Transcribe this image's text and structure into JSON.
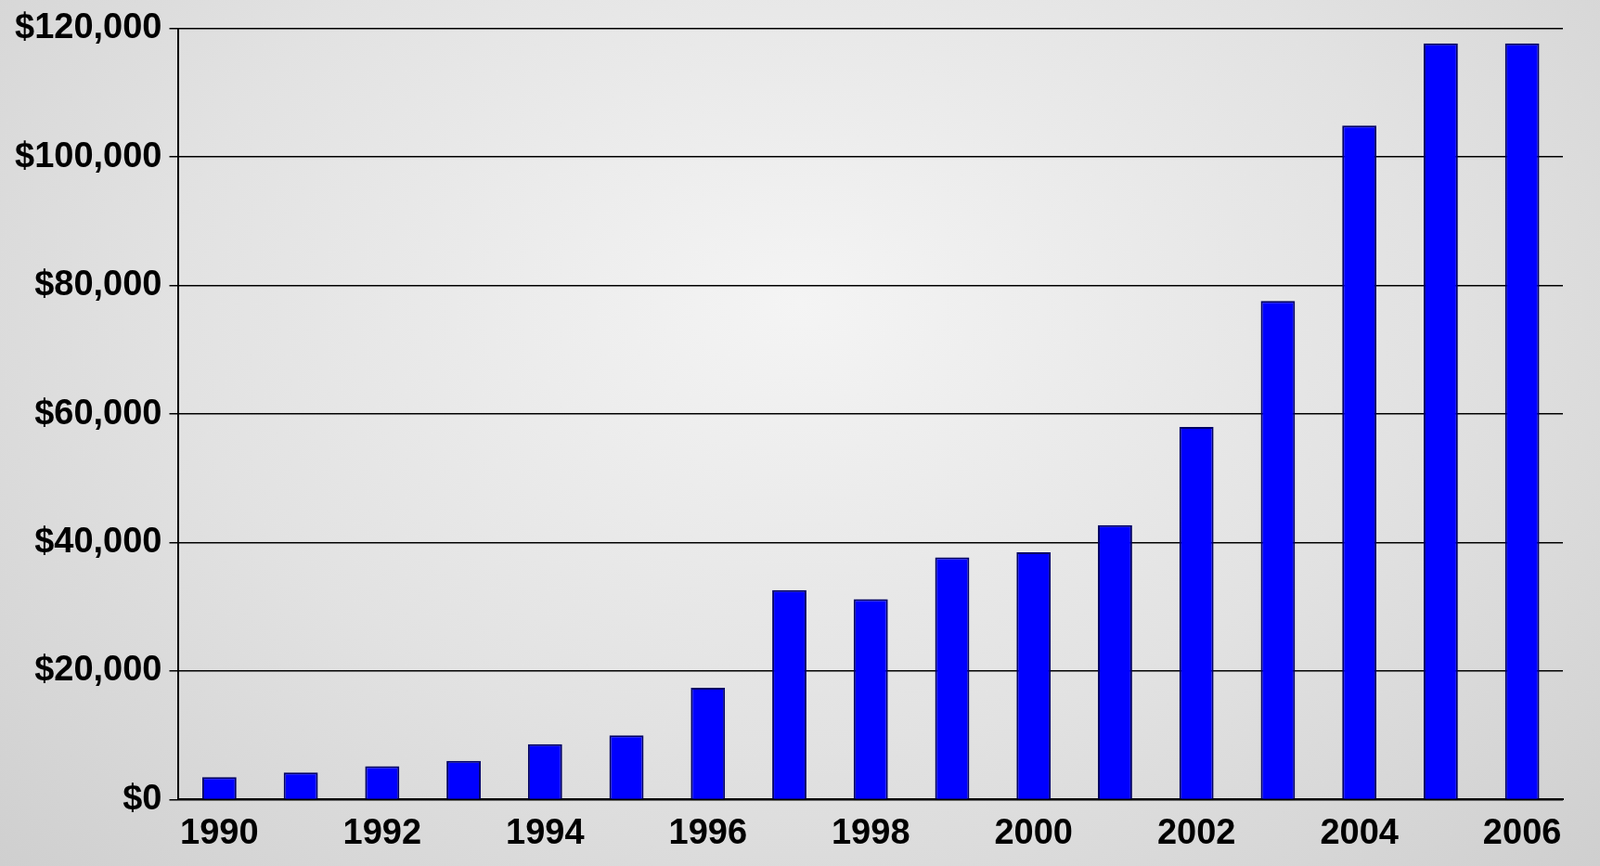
{
  "chart_data": {
    "type": "bar",
    "categories": [
      "1990",
      null,
      "1992",
      null,
      "1994",
      null,
      "1996",
      null,
      "1998",
      null,
      "2000",
      null,
      "2002",
      null,
      "2004",
      null,
      "2006"
    ],
    "values": [
      3500,
      4200,
      5200,
      6000,
      8600,
      10000,
      17400,
      32600,
      31200,
      37700,
      38500,
      42700,
      58000,
      77600,
      104900,
      117700,
      117700
    ],
    "color": "#0000ff",
    "ylim": [
      0,
      120000
    ],
    "yticks": [
      {
        "value": 0,
        "label": "$0"
      },
      {
        "value": 20000,
        "label": "$20,000"
      },
      {
        "value": 40000,
        "label": "$40,000"
      },
      {
        "value": 60000,
        "label": "$60,000"
      },
      {
        "value": 80000,
        "label": "$80,000"
      },
      {
        "value": 100000,
        "label": "$100,000"
      },
      {
        "value": 120000,
        "label": "$120,000"
      }
    ],
    "grid": true
  }
}
